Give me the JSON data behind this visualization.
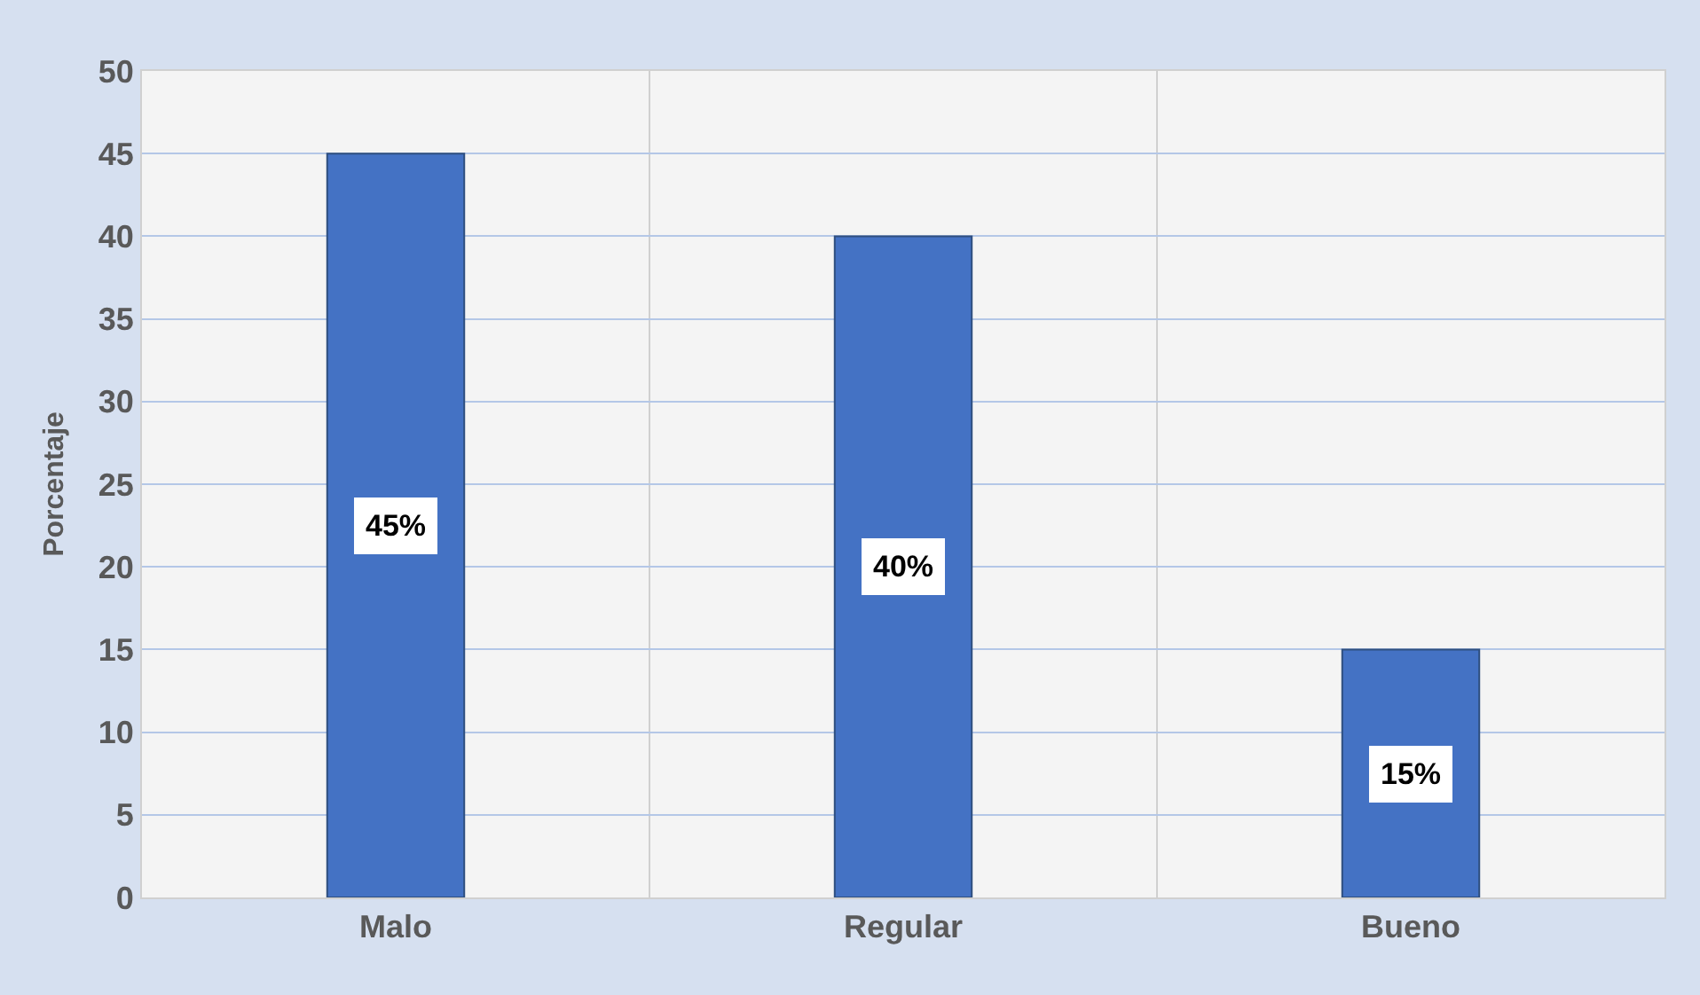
{
  "chart_data": {
    "type": "bar",
    "ylabel": "Porcentaje",
    "categories": [
      "Malo",
      "Regular",
      "Bueno"
    ],
    "values": [
      45,
      40,
      15
    ],
    "value_labels": [
      "45%",
      "40%",
      "15%"
    ],
    "color": "#4472c4",
    "ylim": [
      0,
      50
    ],
    "yticks": [
      0,
      5,
      10,
      15,
      20,
      25,
      30,
      35,
      40,
      45,
      50
    ],
    "grid": true
  }
}
